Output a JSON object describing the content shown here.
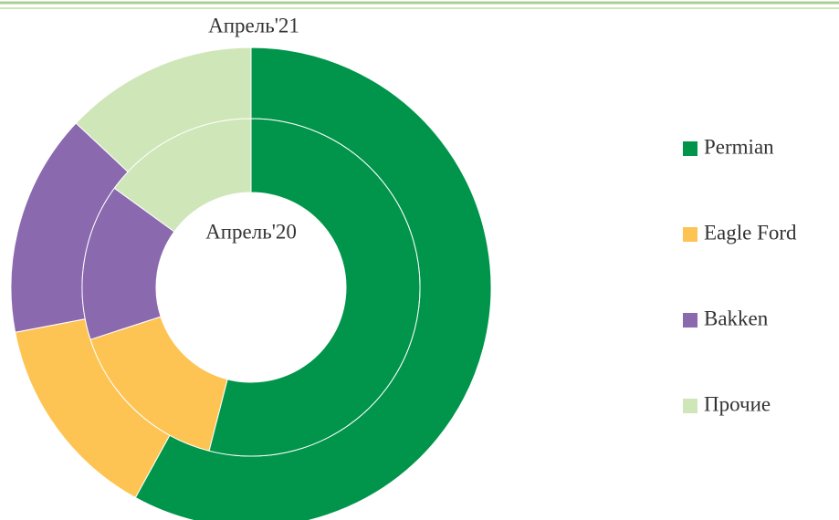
{
  "chart_data": {
    "type": "donut",
    "categories": [
      "Permian",
      "Eagle Ford",
      "Bakken",
      "Прочие"
    ],
    "colors": [
      "#00954a",
      "#fdc453",
      "#8a69ae",
      "#cfe6b8"
    ],
    "series": [
      {
        "name": "Апрель'21",
        "values": [
          58,
          14,
          15,
          13
        ]
      },
      {
        "name": "Апрель'20",
        "values": [
          54,
          16,
          15,
          15
        ]
      }
    ],
    "legend": "right"
  }
}
